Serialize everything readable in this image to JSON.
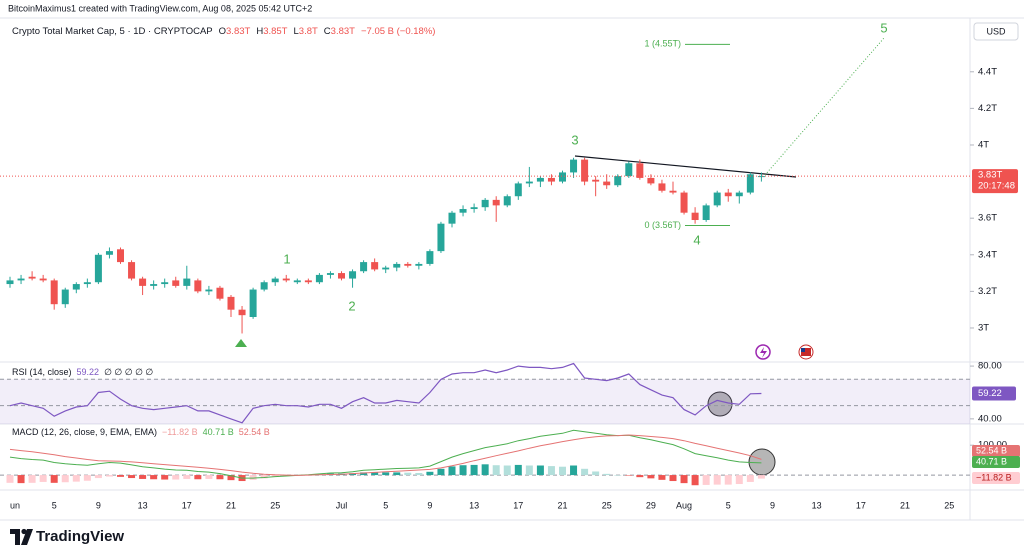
{
  "chart_data": {
    "type": "candlestick",
    "credit": "BitcoinMaximus1 created with TradingView.com, Aug 08, 2025 05:42 UTC+2",
    "title": "Crypto Total Market Cap, 5 · 1D · CRYPTOCAP",
    "ohlc_labels": [
      {
        "key": "O",
        "text": "3.83T"
      },
      {
        "key": "H",
        "text": "3.85T"
      },
      {
        "key": "L",
        "text": "3.8T"
      },
      {
        "key": "C",
        "text": "3.83T"
      }
    ],
    "change_label": "−7.05 B (−0.18%)",
    "currency": "USD",
    "brand": "TradingView",
    "up_color": "#26a69a",
    "down_color": "#ef5350",
    "categories": [
      "un",
      null,
      null,
      null,
      "5",
      null,
      null,
      null,
      "9",
      null,
      null,
      null,
      "13",
      null,
      null,
      null,
      "17",
      null,
      null,
      null,
      "21",
      null,
      null,
      null,
      "25",
      null,
      null,
      null,
      null,
      null,
      "Jul",
      null,
      null,
      null,
      "5",
      null,
      null,
      null,
      "9",
      null,
      null,
      null,
      "13",
      null,
      null,
      null,
      "17",
      null,
      null,
      null,
      "21",
      null,
      null,
      null,
      "25",
      null,
      null,
      null,
      "29",
      null,
      null,
      "Aug",
      null,
      null,
      null,
      "5",
      null,
      null,
      null,
      "9",
      null,
      null,
      null,
      "13",
      null,
      null,
      null,
      "17",
      null,
      null,
      null,
      "21",
      null,
      null,
      null,
      "25"
    ],
    "open": [
      3.24,
      3.26,
      3.28,
      3.27,
      3.26,
      3.13,
      3.21,
      3.24,
      3.25,
      3.4,
      3.43,
      3.36,
      3.27,
      3.23,
      3.24,
      3.26,
      3.23,
      3.26,
      3.2,
      3.22,
      3.17,
      3.1,
      3.06,
      3.21,
      3.25,
      3.27,
      3.25,
      3.26,
      3.25,
      3.29,
      3.3,
      3.27,
      3.31,
      3.36,
      3.32,
      3.33,
      3.35,
      3.34,
      3.35,
      3.42,
      3.57,
      3.63,
      3.65,
      3.66,
      3.7,
      3.67,
      3.72,
      3.79,
      3.8,
      3.82,
      3.8,
      3.85,
      3.92,
      3.81,
      3.8,
      3.78,
      3.83,
      3.9,
      3.82,
      3.79,
      3.75,
      3.74,
      3.63,
      3.59,
      3.67,
      3.74,
      3.72,
      3.74,
      3.83,
      null,
      null,
      null,
      null,
      null,
      null,
      null,
      null,
      null,
      null,
      null,
      null,
      null,
      null,
      null,
      null,
      null
    ],
    "high": [
      3.28,
      3.29,
      3.31,
      3.29,
      3.27,
      3.22,
      3.25,
      3.27,
      3.41,
      3.44,
      3.44,
      3.37,
      3.28,
      3.26,
      3.27,
      3.28,
      3.34,
      3.27,
      3.23,
      3.23,
      3.18,
      3.12,
      3.22,
      3.26,
      3.28,
      3.29,
      3.27,
      3.27,
      3.3,
      3.31,
      3.31,
      3.32,
      3.37,
      3.38,
      3.34,
      3.36,
      3.36,
      3.36,
      3.43,
      3.58,
      3.64,
      3.67,
      3.68,
      3.71,
      3.72,
      3.73,
      3.8,
      3.88,
      3.83,
      3.84,
      3.86,
      3.93,
      3.93,
      3.83,
      3.84,
      3.84,
      3.91,
      3.92,
      3.84,
      3.81,
      3.8,
      3.75,
      3.66,
      3.68,
      3.75,
      3.76,
      3.75,
      3.85,
      3.85,
      null,
      null,
      null,
      null,
      null,
      null,
      null,
      null,
      null,
      null,
      null,
      null,
      null,
      null,
      null,
      null,
      null
    ],
    "low": [
      3.22,
      3.24,
      3.26,
      3.25,
      3.1,
      3.11,
      3.19,
      3.22,
      3.24,
      3.38,
      3.35,
      3.26,
      3.18,
      3.21,
      3.22,
      3.22,
      3.21,
      3.19,
      3.18,
      3.15,
      3.06,
      2.97,
      3.05,
      3.2,
      3.23,
      3.25,
      3.24,
      3.24,
      3.24,
      3.27,
      3.26,
      3.22,
      3.3,
      3.31,
      3.3,
      3.31,
      3.33,
      3.32,
      3.34,
      3.41,
      3.55,
      3.61,
      3.63,
      3.64,
      3.58,
      3.66,
      3.7,
      3.77,
      3.77,
      3.78,
      3.79,
      3.82,
      3.78,
      3.72,
      3.76,
      3.77,
      3.82,
      3.81,
      3.78,
      3.74,
      3.73,
      3.62,
      3.57,
      3.58,
      3.66,
      3.69,
      3.68,
      3.73,
      3.8,
      null,
      null,
      null,
      null,
      null,
      null,
      null,
      null,
      null,
      null,
      null,
      null,
      null,
      null,
      null,
      null,
      null
    ],
    "close": [
      3.26,
      3.27,
      3.27,
      3.26,
      3.13,
      3.21,
      3.24,
      3.25,
      3.4,
      3.42,
      3.36,
      3.27,
      3.23,
      3.24,
      3.25,
      3.23,
      3.27,
      3.2,
      3.21,
      3.16,
      3.1,
      3.07,
      3.21,
      3.25,
      3.27,
      3.26,
      3.26,
      3.25,
      3.29,
      3.3,
      3.27,
      3.31,
      3.36,
      3.32,
      3.33,
      3.35,
      3.34,
      3.35,
      3.42,
      3.57,
      3.63,
      3.65,
      3.66,
      3.7,
      3.67,
      3.72,
      3.79,
      3.8,
      3.82,
      3.8,
      3.85,
      3.92,
      3.8,
      3.8,
      3.78,
      3.83,
      3.9,
      3.82,
      3.79,
      3.75,
      3.74,
      3.63,
      3.59,
      3.67,
      3.74,
      3.72,
      3.74,
      3.84,
      3.83,
      null,
      null,
      null,
      null,
      null,
      null,
      null,
      null,
      null,
      null,
      null,
      null,
      null,
      null,
      null,
      null,
      null
    ],
    "ylim": [
      2.825,
      4.683
    ],
    "yticks": [
      {
        "value": 3,
        "label": "3T"
      },
      {
        "value": 3.2,
        "label": "3.2T"
      },
      {
        "value": 3.4,
        "label": "3.4T"
      },
      {
        "value": 3.6,
        "label": "3.6T"
      },
      {
        "value": 4,
        "label": "4T"
      },
      {
        "value": 4.2,
        "label": "4.2T"
      },
      {
        "value": 4.4,
        "label": "4.4T"
      }
    ],
    "price_badge": {
      "label": "3.83T",
      "timer": "20:17:48"
    },
    "fib": [
      {
        "label": "1 (4.55T)",
        "value": 4.55
      },
      {
        "label": "0 (3.56T)",
        "value": 3.56
      }
    ],
    "waves": [
      "1",
      "2",
      "3",
      "4",
      "5"
    ],
    "rsi": {
      "title": "RSI (14, close)",
      "label": "59.22",
      "extra": "∅ ∅ ∅ ∅ ∅",
      "color": "#7e57c2",
      "values": [
        50,
        52,
        50,
        48,
        42,
        46,
        49,
        50,
        60,
        61,
        55,
        50,
        48,
        47,
        48,
        49,
        50,
        46,
        46,
        43,
        40,
        37,
        48,
        50,
        51,
        50,
        50,
        49,
        51,
        51,
        48,
        53,
        56,
        52,
        52,
        54,
        53,
        52,
        60,
        70,
        74,
        75,
        75,
        77,
        75,
        77,
        80,
        79,
        79,
        78,
        79,
        82,
        71,
        70,
        69,
        71,
        74,
        66,
        62,
        58,
        56,
        47,
        43,
        50,
        54,
        52,
        51,
        59,
        59.22,
        null,
        null,
        null,
        null,
        null,
        null,
        null,
        null,
        null,
        null,
        null,
        null,
        null,
        null,
        null,
        null,
        null
      ],
      "levels": [
        70,
        50,
        30
      ],
      "ylim": [
        36.1,
        83.1
      ],
      "yticks": [
        {
          "value": 80,
          "label": "80.00"
        },
        {
          "value": 40,
          "label": "40.00"
        }
      ]
    },
    "macd": {
      "title": "MACD (12, 26, close, 9, EMA, EMA)",
      "histogram": {
        "label": "−11.82 B",
        "values": [
          -26,
          -27,
          -26,
          -23,
          -26,
          -24,
          -22,
          -19,
          -10,
          -5,
          -6,
          -10,
          -13,
          -14,
          -15,
          -15,
          -13,
          -14,
          -13,
          -14,
          -17,
          -20,
          -16,
          -11,
          -6,
          -3,
          0,
          1,
          3,
          5,
          5,
          6,
          9,
          9,
          9,
          9,
          8,
          7,
          11,
          21,
          29,
          33,
          34,
          36,
          33,
          32,
          34,
          32,
          32,
          30,
          28,
          32,
          21,
          12,
          4,
          0,
          -1,
          -7,
          -11,
          -16,
          -20,
          -27,
          -34,
          -33,
          -32,
          -32,
          -30,
          -23,
          -11.82,
          null,
          null,
          null,
          null,
          null,
          null,
          null,
          null,
          null,
          null,
          null,
          null,
          null,
          null,
          null,
          null,
          null
        ]
      },
      "macd": {
        "label": "40.71 B",
        "color": "#4caf50",
        "values": [
          60,
          55,
          52,
          50,
          42,
          38,
          35,
          33,
          38,
          42,
          40,
          34,
          28,
          24,
          20,
          17,
          16,
          12,
          10,
          5,
          -2,
          -10,
          -10,
          -8,
          -5,
          -3,
          -1,
          1,
          4,
          7,
          8,
          11,
          16,
          18,
          20,
          22,
          23,
          24,
          30,
          45,
          60,
          72,
          82,
          92,
          98,
          105,
          115,
          122,
          130,
          135,
          140,
          150,
          145,
          140,
          135,
          132,
          133,
          125,
          118,
          110,
          102,
          88,
          72,
          65,
          58,
          50,
          44,
          42,
          40.71,
          null,
          null,
          null,
          null,
          null,
          null,
          null,
          null,
          null,
          null,
          null,
          null,
          null,
          null,
          null,
          null,
          null
        ]
      },
      "signal": {
        "label": "52.54 B",
        "color": "#e57373",
        "values": [
          86,
          82,
          78,
          73,
          68,
          62,
          57,
          52,
          48,
          47,
          46,
          44,
          41,
          38,
          35,
          32,
          29,
          26,
          23,
          19,
          15,
          10,
          6,
          3,
          1,
          0,
          -1,
          0,
          1,
          2,
          3,
          5,
          7,
          9,
          11,
          13,
          15,
          17,
          19,
          24,
          31,
          39,
          48,
          56,
          65,
          73,
          81,
          90,
          98,
          105,
          112,
          118,
          124,
          128,
          131,
          132,
          134,
          132,
          129,
          126,
          122,
          115,
          106,
          98,
          90,
          82,
          74,
          65,
          52.54,
          null,
          null,
          null,
          null,
          null,
          null,
          null,
          null,
          null,
          null,
          null,
          null,
          null,
          null,
          null,
          null,
          null
        ]
      },
      "ylim": [
        -50,
        171
      ],
      "yticks": [
        {
          "value": 100,
          "label": "100.00"
        }
      ]
    }
  }
}
